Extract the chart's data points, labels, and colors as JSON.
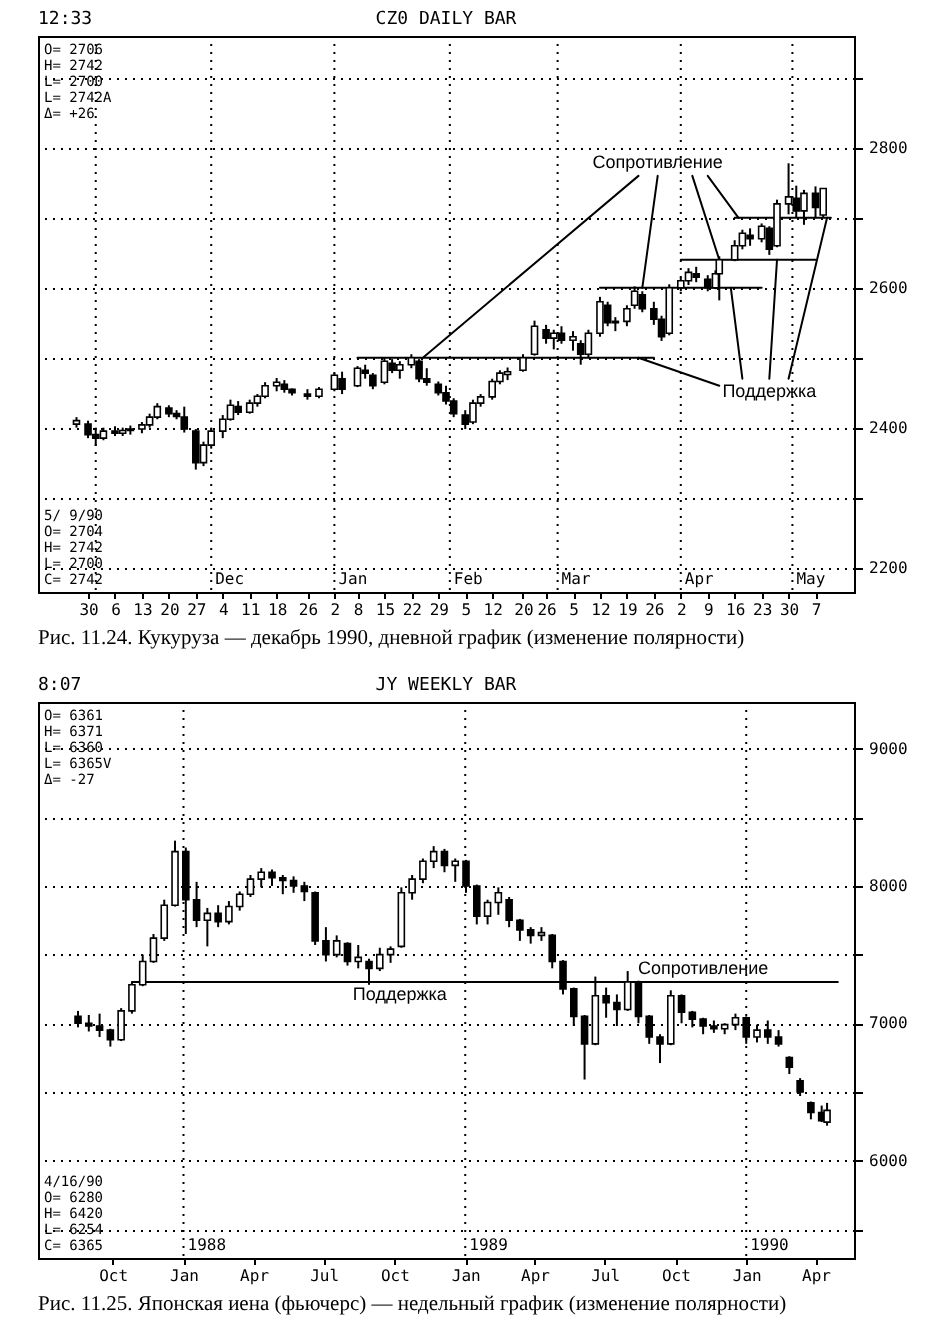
{
  "chart_data": [
    {
      "type": "candlestick",
      "title": "CZ0 DAILY BAR",
      "color": "#000000",
      "x": [
        "1989-10-27",
        "1989-10-30",
        "1989-11-01",
        "1989-11-03",
        "1989-11-06",
        "1989-11-08",
        "1989-11-10",
        "1989-11-13",
        "1989-11-15",
        "1989-11-17",
        "1989-11-20",
        "1989-11-22",
        "1989-11-24",
        "1989-11-27",
        "1989-11-29",
        "1989-12-01",
        "1989-12-04",
        "1989-12-06",
        "1989-12-08",
        "1989-12-11",
        "1989-12-13",
        "1989-12-15",
        "1989-12-18",
        "1989-12-20",
        "1989-12-22",
        "1989-12-26",
        "1989-12-29",
        "1990-01-02",
        "1990-01-04",
        "1990-01-08",
        "1990-01-10",
        "1990-01-12",
        "1990-01-15",
        "1990-01-17",
        "1990-01-19",
        "1990-01-22",
        "1990-01-24",
        "1990-01-26",
        "1990-01-29",
        "1990-01-31",
        "1990-02-02",
        "1990-02-05",
        "1990-02-07",
        "1990-02-09",
        "1990-02-12",
        "1990-02-14",
        "1990-02-16",
        "1990-02-20",
        "1990-02-23",
        "1990-02-26",
        "1990-02-28",
        "1990-03-02",
        "1990-03-05",
        "1990-03-07",
        "1990-03-09",
        "1990-03-12",
        "1990-03-14",
        "1990-03-16",
        "1990-03-19",
        "1990-03-21",
        "1990-03-23",
        "1990-03-26",
        "1990-03-28",
        "1990-03-30",
        "1990-04-02",
        "1990-04-04",
        "1990-04-06",
        "1990-04-09",
        "1990-04-11",
        "1990-04-12",
        "1990-04-16",
        "1990-04-18",
        "1990-04-20",
        "1990-04-23",
        "1990-04-25",
        "1990-04-27",
        "1990-04-30",
        "1990-05-02",
        "1990-05-04",
        "1990-05-07",
        "1990-05-09"
      ],
      "ohlc": [
        [
          2405,
          2415,
          2400,
          2410
        ],
        [
          2405,
          2410,
          2385,
          2390
        ],
        [
          2390,
          2400,
          2374,
          2385
        ],
        [
          2385,
          2400,
          2382,
          2395
        ],
        [
          2395,
          2402,
          2388,
          2392
        ],
        [
          2392,
          2400,
          2388,
          2396
        ],
        [
          2396,
          2403,
          2390,
          2398
        ],
        [
          2398,
          2408,
          2392,
          2404
        ],
        [
          2404,
          2420,
          2400,
          2415
        ],
        [
          2415,
          2435,
          2412,
          2430
        ],
        [
          2428,
          2432,
          2415,
          2420
        ],
        [
          2420,
          2425,
          2412,
          2416
        ],
        [
          2415,
          2430,
          2393,
          2398
        ],
        [
          2395,
          2398,
          2340,
          2350
        ],
        [
          2350,
          2380,
          2345,
          2375
        ],
        [
          2375,
          2400,
          2370,
          2395
        ],
        [
          2395,
          2418,
          2385,
          2412
        ],
        [
          2412,
          2440,
          2410,
          2432
        ],
        [
          2430,
          2438,
          2418,
          2422
        ],
        [
          2422,
          2440,
          2420,
          2435
        ],
        [
          2435,
          2448,
          2430,
          2445
        ],
        [
          2445,
          2465,
          2442,
          2460
        ],
        [
          2460,
          2471,
          2452,
          2465
        ],
        [
          2462,
          2468,
          2450,
          2455
        ],
        [
          2455,
          2456,
          2446,
          2450
        ],
        [
          2448,
          2455,
          2440,
          2445
        ],
        [
          2445,
          2458,
          2442,
          2455
        ],
        [
          2455,
          2478,
          2452,
          2475
        ],
        [
          2470,
          2480,
          2448,
          2455
        ],
        [
          2460,
          2488,
          2458,
          2485
        ],
        [
          2482,
          2490,
          2470,
          2478
        ],
        [
          2475,
          2478,
          2455,
          2460
        ],
        [
          2465,
          2500,
          2462,
          2495
        ],
        [
          2492,
          2498,
          2478,
          2482
        ],
        [
          2482,
          2495,
          2470,
          2490
        ],
        [
          2490,
          2505,
          2485,
          2500
        ],
        [
          2495,
          2498,
          2465,
          2470
        ],
        [
          2470,
          2485,
          2460,
          2465
        ],
        [
          2462,
          2466,
          2446,
          2450
        ],
        [
          2450,
          2460,
          2433,
          2438
        ],
        [
          2438,
          2442,
          2415,
          2420
        ],
        [
          2418,
          2425,
          2398,
          2405
        ],
        [
          2408,
          2440,
          2405,
          2435
        ],
        [
          2435,
          2448,
          2430,
          2444
        ],
        [
          2444,
          2470,
          2440,
          2466
        ],
        [
          2466,
          2482,
          2462,
          2478
        ],
        [
          2476,
          2486,
          2468,
          2480
        ],
        [
          2482,
          2505,
          2480,
          2500
        ],
        [
          2505,
          2553,
          2503,
          2545
        ],
        [
          2540,
          2547,
          2520,
          2528
        ],
        [
          2528,
          2540,
          2512,
          2535
        ],
        [
          2535,
          2545,
          2520,
          2525
        ],
        [
          2525,
          2538,
          2510,
          2530
        ],
        [
          2520,
          2525,
          2490,
          2505
        ],
        [
          2505,
          2540,
          2500,
          2535
        ],
        [
          2535,
          2587,
          2530,
          2580
        ],
        [
          2575,
          2580,
          2545,
          2550
        ],
        [
          2550,
          2558,
          2538,
          2552
        ],
        [
          2552,
          2575,
          2545,
          2570
        ],
        [
          2575,
          2602,
          2570,
          2595
        ],
        [
          2590,
          2595,
          2565,
          2570
        ],
        [
          2570,
          2580,
          2547,
          2555
        ],
        [
          2555,
          2560,
          2524,
          2530
        ],
        [
          2535,
          2605,
          2532,
          2600
        ],
        [
          2600,
          2615,
          2595,
          2610
        ],
        [
          2610,
          2628,
          2604,
          2622
        ],
        [
          2620,
          2630,
          2608,
          2615
        ],
        [
          2612,
          2618,
          2595,
          2600
        ],
        [
          2600,
          2625,
          2598,
          2620
        ],
        [
          2620,
          2645,
          2582,
          2640
        ],
        [
          2640,
          2668,
          2638,
          2660
        ],
        [
          2660,
          2683,
          2655,
          2678
        ],
        [
          2675,
          2685,
          2660,
          2670
        ],
        [
          2670,
          2692,
          2665,
          2688
        ],
        [
          2685,
          2688,
          2647,
          2655
        ],
        [
          2660,
          2726,
          2658,
          2720
        ],
        [
          2720,
          2778,
          2705,
          2730
        ],
        [
          2728,
          2746,
          2700,
          2710
        ],
        [
          2710,
          2740,
          2690,
          2735
        ],
        [
          2735,
          2745,
          2700,
          2715
        ],
        [
          2704,
          2742,
          2700,
          2742
        ]
      ],
      "series": [
        {
          "type": "line",
          "color": "#000000",
          "x": [
            "1990-01-08",
            "1990-03-26"
          ],
          "values": [
            2500,
            2500
          ]
        },
        {
          "type": "line",
          "color": "#000000",
          "x": [
            "1990-03-12",
            "1990-04-23"
          ],
          "values": [
            2600,
            2600
          ]
        },
        {
          "type": "line",
          "color": "#000000",
          "x": [
            "1990-04-02",
            "1990-05-07"
          ],
          "values": [
            2640,
            2640
          ]
        },
        {
          "type": "line",
          "color": "#000000",
          "x": [
            "1990-04-16",
            "1990-05-11"
          ],
          "values": [
            2700,
            2700
          ]
        },
        {
          "type": "line",
          "color": "#000000",
          "x": [
            "1990-03-22",
            "1990-01-25"
          ],
          "values": [
            2760,
            2500
          ]
        },
        {
          "type": "line",
          "color": "#000000",
          "x": [
            "1990-03-27",
            "1990-03-23"
          ],
          "values": [
            2760,
            2600
          ]
        },
        {
          "type": "line",
          "color": "#000000",
          "x": [
            "1990-04-05",
            "1990-04-12"
          ],
          "values": [
            2760,
            2640
          ]
        },
        {
          "type": "line",
          "color": "#000000",
          "x": [
            "1990-04-09",
            "1990-04-17"
          ],
          "values": [
            2760,
            2700
          ]
        },
        {
          "type": "line",
          "color": "#000000",
          "x": [
            "1990-04-12",
            "1990-03-22"
          ],
          "values": [
            2460,
            2500
          ]
        },
        {
          "type": "line",
          "color": "#000000",
          "x": [
            "1990-04-18",
            "1990-04-15"
          ],
          "values": [
            2470,
            2600
          ]
        },
        {
          "type": "line",
          "color": "#000000",
          "x": [
            "1990-04-25",
            "1990-04-27"
          ],
          "values": [
            2470,
            2640
          ]
        },
        {
          "type": "line",
          "color": "#000000",
          "x": [
            "1990-04-30",
            "1990-05-10"
          ],
          "values": [
            2470,
            2700
          ]
        }
      ],
      "xlim": [
        "1989-10-17",
        "1990-05-17"
      ],
      "ylim": [
        2165,
        2960
      ],
      "xticks": [
        {
          "value": "1989-10-30",
          "label": "30"
        },
        {
          "value": "1989-11-06",
          "label": "6"
        },
        {
          "value": "1989-11-13",
          "label": "13"
        },
        {
          "value": "1989-11-20",
          "label": "20"
        },
        {
          "value": "1989-11-27",
          "label": "27"
        },
        {
          "value": "1989-12-04",
          "label": "4"
        },
        {
          "value": "1989-12-11",
          "label": "11"
        },
        {
          "value": "1989-12-18",
          "label": "18"
        },
        {
          "value": "1989-12-26",
          "label": "26"
        },
        {
          "value": "1990-01-02",
          "label": "2"
        },
        {
          "value": "1990-01-08",
          "label": "8"
        },
        {
          "value": "1990-01-15",
          "label": "15"
        },
        {
          "value": "1990-01-22",
          "label": "22"
        },
        {
          "value": "1990-01-29",
          "label": "29"
        },
        {
          "value": "1990-02-05",
          "label": "5"
        },
        {
          "value": "1990-02-12",
          "label": "12"
        },
        {
          "value": "1990-02-20",
          "label": "20"
        },
        {
          "value": "1990-02-26",
          "label": "26"
        },
        {
          "value": "1990-03-05",
          "label": "5"
        },
        {
          "value": "1990-03-12",
          "label": "12"
        },
        {
          "value": "1990-03-19",
          "label": "19"
        },
        {
          "value": "1990-03-26",
          "label": "26"
        },
        {
          "value": "1990-04-02",
          "label": "2"
        },
        {
          "value": "1990-04-09",
          "label": "9"
        },
        {
          "value": "1990-04-16",
          "label": "16"
        },
        {
          "value": "1990-04-23",
          "label": "23"
        },
        {
          "value": "1990-04-30",
          "label": "30"
        },
        {
          "value": "1990-05-07",
          "label": "7"
        }
      ],
      "yticks": [
        2200,
        {
          "value": 2300,
          "label": null
        },
        2400,
        {
          "value": 2500,
          "label": null
        },
        2600,
        {
          "value": 2700,
          "label": null
        },
        2800,
        {
          "value": 2900,
          "label": null
        }
      ],
      "grid": "y",
      "ref_lines": [
        {
          "axis": "x",
          "value": "1989-11-01",
          "label": null,
          "color": "#000000",
          "line_style": "dotted"
        },
        {
          "axis": "x",
          "value": "1989-12-01",
          "label": "Dec",
          "color": "#000000",
          "line_style": "dotted"
        },
        {
          "axis": "x",
          "value": "1990-01-02",
          "label": "Jan",
          "color": "#000000",
          "line_style": "dotted"
        },
        {
          "axis": "x",
          "value": "1990-02-01",
          "label": "Feb",
          "color": "#000000",
          "line_style": "dotted"
        },
        {
          "axis": "x",
          "value": "1990-03-01",
          "label": "Mar",
          "color": "#000000",
          "line_style": "dotted"
        },
        {
          "axis": "x",
          "value": "1990-04-02",
          "label": "Apr",
          "color": "#000000",
          "line_style": "dotted"
        },
        {
          "axis": "x",
          "value": "1990-05-01",
          "label": "May",
          "color": "#000000",
          "line_style": "dotted"
        }
      ],
      "annotations": [
        "12:33",
        "O= 2706",
        "H= 2742",
        "L= 2700",
        "L= 2742A",
        "Δ= +26",
        "5/ 9/90",
        "O= 2704",
        "H= 2742",
        "L= 2700",
        "C= 2742",
        "Рис. 11.24. Кукуруза — декабрь 1990, дневной график (изменение полярности)",
        {
          "text": "Сопротивление",
          "x": "1990-03-27",
          "y": 2760
        },
        {
          "text": "Поддержка",
          "x": "1990-04-25",
          "y": 2470
        }
      ]
    },
    {
      "type": "candlestick",
      "title": "JY WEEKLY BAR",
      "color": "#000000",
      "x": [
        "1987-08-17",
        "1987-08-31",
        "1987-09-14",
        "1987-09-28",
        "1987-10-12",
        "1987-10-26",
        "1987-11-09",
        "1987-11-23",
        "1987-12-07",
        "1987-12-21",
        "1988-01-04",
        "1988-01-18",
        "1988-02-01",
        "1988-02-15",
        "1988-02-29",
        "1988-03-14",
        "1988-03-28",
        "1988-04-11",
        "1988-04-25",
        "1988-05-09",
        "1988-05-23",
        "1988-06-06",
        "1988-06-20",
        "1988-07-04",
        "1988-07-18",
        "1988-08-01",
        "1988-08-15",
        "1988-08-29",
        "1988-09-12",
        "1988-09-26",
        "1988-10-10",
        "1988-10-24",
        "1988-11-07",
        "1988-11-21",
        "1988-12-05",
        "1988-12-19",
        "1989-01-02",
        "1989-01-16",
        "1989-01-30",
        "1989-02-13",
        "1989-02-27",
        "1989-03-13",
        "1989-03-27",
        "1989-04-10",
        "1989-04-24",
        "1989-05-08",
        "1989-05-22",
        "1989-06-05",
        "1989-06-19",
        "1989-07-03",
        "1989-07-17",
        "1989-07-31",
        "1989-08-14",
        "1989-08-28",
        "1989-09-11",
        "1989-09-25",
        "1989-10-09",
        "1989-10-23",
        "1989-11-06",
        "1989-11-20",
        "1989-12-04",
        "1989-12-18",
        "1990-01-01",
        "1990-01-15",
        "1990-01-29",
        "1990-02-12",
        "1990-02-26",
        "1990-03-12",
        "1990-03-26",
        "1990-04-09",
        "1990-04-16"
      ],
      "ohlc": [
        [
          7050,
          7090,
          6970,
          7000
        ],
        [
          7000,
          7060,
          6940,
          6980
        ],
        [
          6980,
          7070,
          6900,
          6950
        ],
        [
          6950,
          6960,
          6830,
          6880
        ],
        [
          6880,
          7110,
          6870,
          7090
        ],
        [
          7090,
          7300,
          7070,
          7280
        ],
        [
          7280,
          7500,
          7270,
          7450
        ],
        [
          7450,
          7650,
          7440,
          7620
        ],
        [
          7620,
          7900,
          7600,
          7860
        ],
        [
          7860,
          8330,
          7850,
          8250
        ],
        [
          8250,
          8280,
          7650,
          7900
        ],
        [
          7900,
          8030,
          7700,
          7750
        ],
        [
          7750,
          7840,
          7560,
          7800
        ],
        [
          7800,
          7860,
          7700,
          7740
        ],
        [
          7740,
          7890,
          7720,
          7850
        ],
        [
          7850,
          7960,
          7820,
          7940
        ],
        [
          7940,
          8080,
          7920,
          8050
        ],
        [
          8050,
          8130,
          7990,
          8100
        ],
        [
          8100,
          8120,
          8000,
          8060
        ],
        [
          8060,
          8080,
          7940,
          8040
        ],
        [
          8040,
          8070,
          7950,
          8000
        ],
        [
          8000,
          8030,
          7890,
          7960
        ],
        [
          7950,
          7960,
          7570,
          7600
        ],
        [
          7600,
          7700,
          7450,
          7500
        ],
        [
          7500,
          7640,
          7480,
          7600
        ],
        [
          7580,
          7590,
          7420,
          7450
        ],
        [
          7450,
          7570,
          7400,
          7480
        ],
        [
          7450,
          7470,
          7280,
          7400
        ],
        [
          7400,
          7550,
          7380,
          7500
        ],
        [
          7500,
          7560,
          7440,
          7540
        ],
        [
          7560,
          7990,
          7550,
          7950
        ],
        [
          7950,
          8080,
          7900,
          8050
        ],
        [
          8050,
          8200,
          8020,
          8180
        ],
        [
          8180,
          8290,
          8130,
          8250
        ],
        [
          8250,
          8270,
          8100,
          8150
        ],
        [
          8150,
          8200,
          8030,
          8180
        ],
        [
          8180,
          8190,
          7950,
          8000
        ],
        [
          8000,
          8010,
          7720,
          7780
        ],
        [
          7780,
          7900,
          7720,
          7880
        ],
        [
          7880,
          7990,
          7790,
          7950
        ],
        [
          7900,
          7920,
          7700,
          7750
        ],
        [
          7750,
          7760,
          7600,
          7680
        ],
        [
          7680,
          7700,
          7580,
          7640
        ],
        [
          7640,
          7700,
          7600,
          7660
        ],
        [
          7640,
          7650,
          7400,
          7450
        ],
        [
          7450,
          7460,
          7210,
          7250
        ],
        [
          7250,
          7260,
          6980,
          7050
        ],
        [
          7050,
          7060,
          6590,
          6850
        ],
        [
          6850,
          7340,
          6840,
          7200
        ],
        [
          7200,
          7260,
          7040,
          7150
        ],
        [
          7150,
          7210,
          6980,
          7100
        ],
        [
          7100,
          7380,
          7090,
          7300
        ],
        [
          7300,
          7310,
          7000,
          7050
        ],
        [
          7050,
          7060,
          6850,
          6900
        ],
        [
          6900,
          6920,
          6710,
          6850
        ],
        [
          6850,
          7240,
          6840,
          7200
        ],
        [
          7200,
          7210,
          7000,
          7080
        ],
        [
          7080,
          7090,
          6970,
          7030
        ],
        [
          7030,
          7040,
          6920,
          6980
        ],
        [
          6980,
          7020,
          6930,
          6960
        ],
        [
          6960,
          7000,
          6920,
          6990
        ],
        [
          6990,
          7070,
          6950,
          7040
        ],
        [
          7040,
          7050,
          6850,
          6900
        ],
        [
          6900,
          6990,
          6860,
          6950
        ],
        [
          6950,
          7020,
          6850,
          6900
        ],
        [
          6900,
          6950,
          6830,
          6850
        ],
        [
          6750,
          6760,
          6630,
          6680
        ],
        [
          6580,
          6600,
          6470,
          6500
        ],
        [
          6420,
          6430,
          6300,
          6350
        ],
        [
          6350,
          6400,
          6280,
          6290
        ],
        [
          6280,
          6420,
          6254,
          6365
        ]
      ],
      "series": [
        {
          "type": "line",
          "color": "#000000",
          "x": [
            "1987-10-26",
            "1990-04-30"
          ],
          "values": [
            7300,
            7300
          ]
        }
      ],
      "xlim": [
        "1987-06-26",
        "1990-05-21"
      ],
      "ylim": [
        5290,
        9340
      ],
      "xticks": [
        {
          "value": "1987-10-01",
          "label": "Oct"
        },
        {
          "value": "1988-01-01",
          "label": "Jan"
        },
        {
          "value": "1988-04-01",
          "label": "Apr"
        },
        {
          "value": "1988-07-01",
          "label": "Jul"
        },
        {
          "value": "1988-10-01",
          "label": "Oct"
        },
        {
          "value": "1989-01-01",
          "label": "Jan"
        },
        {
          "value": "1989-04-01",
          "label": "Apr"
        },
        {
          "value": "1989-07-01",
          "label": "Jul"
        },
        {
          "value": "1989-10-01",
          "label": "Oct"
        },
        {
          "value": "1990-01-01",
          "label": "Jan"
        },
        {
          "value": "1990-04-01",
          "label": "Apr"
        }
      ],
      "yticks": [
        {
          "value": 5500,
          "label": null
        },
        6000,
        {
          "value": 6500,
          "label": null
        },
        7000,
        {
          "value": 7500,
          "label": null
        },
        8000,
        {
          "value": 8500,
          "label": null
        },
        9000
      ],
      "grid": "y",
      "ref_lines": [
        {
          "axis": "x",
          "value": "1988-01-01",
          "label": "1988",
          "color": "#000000",
          "line_style": "dotted"
        },
        {
          "axis": "x",
          "value": "1989-01-01",
          "label": "1989",
          "color": "#000000",
          "line_style": "dotted"
        },
        {
          "axis": "x",
          "value": "1990-01-01",
          "label": "1990",
          "color": "#000000",
          "line_style": "dotted"
        }
      ],
      "annotations": [
        "8:07",
        "O= 6361",
        "H= 6371",
        "L= 6360",
        "L= 6365V",
        "Δ= -27",
        "4/16/90",
        "O= 6280",
        "H= 6420",
        "L= 6254",
        "C= 6365",
        "Рис. 11.25. Японская иена (фьючерс) — недельный график (изменение полярности)",
        {
          "text": "Поддержка",
          "x": "1988-10-08",
          "y": 7300
        },
        {
          "text": "Сопротивление",
          "x": "1989-11-06",
          "y": 7300
        }
      ]
    }
  ]
}
